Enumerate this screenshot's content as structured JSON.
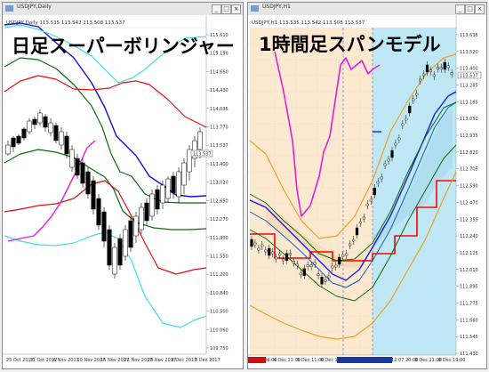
{
  "left_chart": {
    "window_title": "USDJPY,Daily",
    "symbol_line": "USDJPY,Daily 113.535 113.542 113.508 113.537",
    "heading": "日足スーパーボリンジャー",
    "price_axis": [
      "115.610",
      "115.150",
      "114.660",
      "114.430",
      "114.035",
      "113.770",
      "113.537",
      "113.400",
      "113.020",
      "112.650",
      "112.270",
      "111.900",
      "111.550",
      "111.200",
      "110.840",
      "110.500",
      "110.060",
      "109.750"
    ],
    "last_price": "113.537",
    "date_axis": [
      "25 Oct 2017",
      "31 Oct 2017",
      "6 Nov 2017",
      "10 Nov 2017",
      "16 Nov 2017",
      "22 Nov 2017",
      "28 Nov 2017",
      "4 Dec 2017",
      "8 Dec 2017"
    ],
    "colors": {
      "outer_band": "#40e0e8",
      "mid_band": "#e01010",
      "inner_band": "#0a6e0a",
      "center": "#1010d0",
      "chikou": "#e020e0",
      "candle": "#000000"
    }
  },
  "right_chart": {
    "window_title": "USDJPY,H1",
    "symbol_line": "USDJPY,H1 113.535 113.542 113.508 113.537",
    "heading": "1時間足スパンモデル",
    "price_axis": [
      "113.635",
      "113.520",
      "113.400",
      "113.285",
      "113.165",
      "113.050",
      "112.935",
      "112.820",
      "112.705",
      "112.590",
      "112.470",
      "112.355",
      "112.240",
      "112.125",
      "112.010",
      "111.895",
      "111.775",
      "111.660",
      "111.545",
      "111.430"
    ],
    "last_price": "113.537",
    "date_axis": [
      "1 Dec 04:00",
      "4 Dec 11:00",
      "5 Dec 11:00",
      "6 Dec 19:00",
      "7 Dec 2017",
      "12:07 2017",
      "12:07 20:00",
      "8 Dec 11:00",
      "8 Dec 19:00"
    ],
    "colors": {
      "red_span": "#ff0000",
      "blue_span": "#1a1ae0",
      "orange_band": "#f0a020",
      "green_band": "#0a6e0a",
      "chikou": "#e020e0",
      "cloud_bear": "#fde9d0",
      "cloud_bull": "#bfe8f6"
    }
  },
  "chart_data": [
    {
      "type": "line",
      "title": "日足スーパーボリンジャー",
      "x": [
        "25 Oct 2017",
        "31 Oct 2017",
        "6 Nov 2017",
        "10 Nov 2017",
        "16 Nov 2017",
        "22 Nov 2017",
        "28 Nov 2017",
        "4 Dec 2017",
        "8 Dec 2017"
      ],
      "ylim": [
        109.75,
        115.61
      ],
      "series": [
        {
          "values": [
            113.8,
            113.9,
            114.0,
            113.9,
            114.0,
            113.4,
            112.9,
            112.6,
            112.4
          ]
        },
        {
          "values": [
            113.2,
            113.4,
            113.7,
            113.8,
            113.5,
            112.5,
            111.5,
            112.1,
            113.3
          ]
        },
        {
          "values": [
            115.7,
            115.8,
            115.9,
            115.8,
            115.5,
            114.6,
            114.0,
            114.2,
            114.6
          ]
        },
        {
          "values": [
            110.6,
            110.8,
            111.2,
            111.7,
            111.4,
            110.6,
            110.0,
            110.2,
            110.7
          ]
        }
      ],
      "grid": false
    },
    {
      "type": "line",
      "title": "1時間足スパンモデル",
      "x": [
        "1 Dec 04:00",
        "4 Dec 11:00",
        "5 Dec 11:00",
        "6 Dec 19:00",
        "7 Dec 2017",
        "12:07 2017",
        "12:07 20:00",
        "8 Dec 11:00",
        "8 Dec 19:00"
      ],
      "ylim": [
        111.43,
        113.635
      ],
      "series": [
        {
          "values": [
            111.95,
            111.95,
            111.95,
            111.95,
            111.95,
            112.2,
            112.3,
            112.55,
            112.65
          ]
        },
        {
          "values": [
            112.3,
            112.1,
            111.8,
            111.8,
            112.0,
            112.4,
            112.8,
            113.2,
            113.4
          ]
        },
        {
          "values": [
            112.5,
            112.2,
            111.9,
            111.7,
            112.0,
            112.7,
            113.0,
            113.5,
            113.55
          ]
        }
      ],
      "grid": true
    }
  ]
}
